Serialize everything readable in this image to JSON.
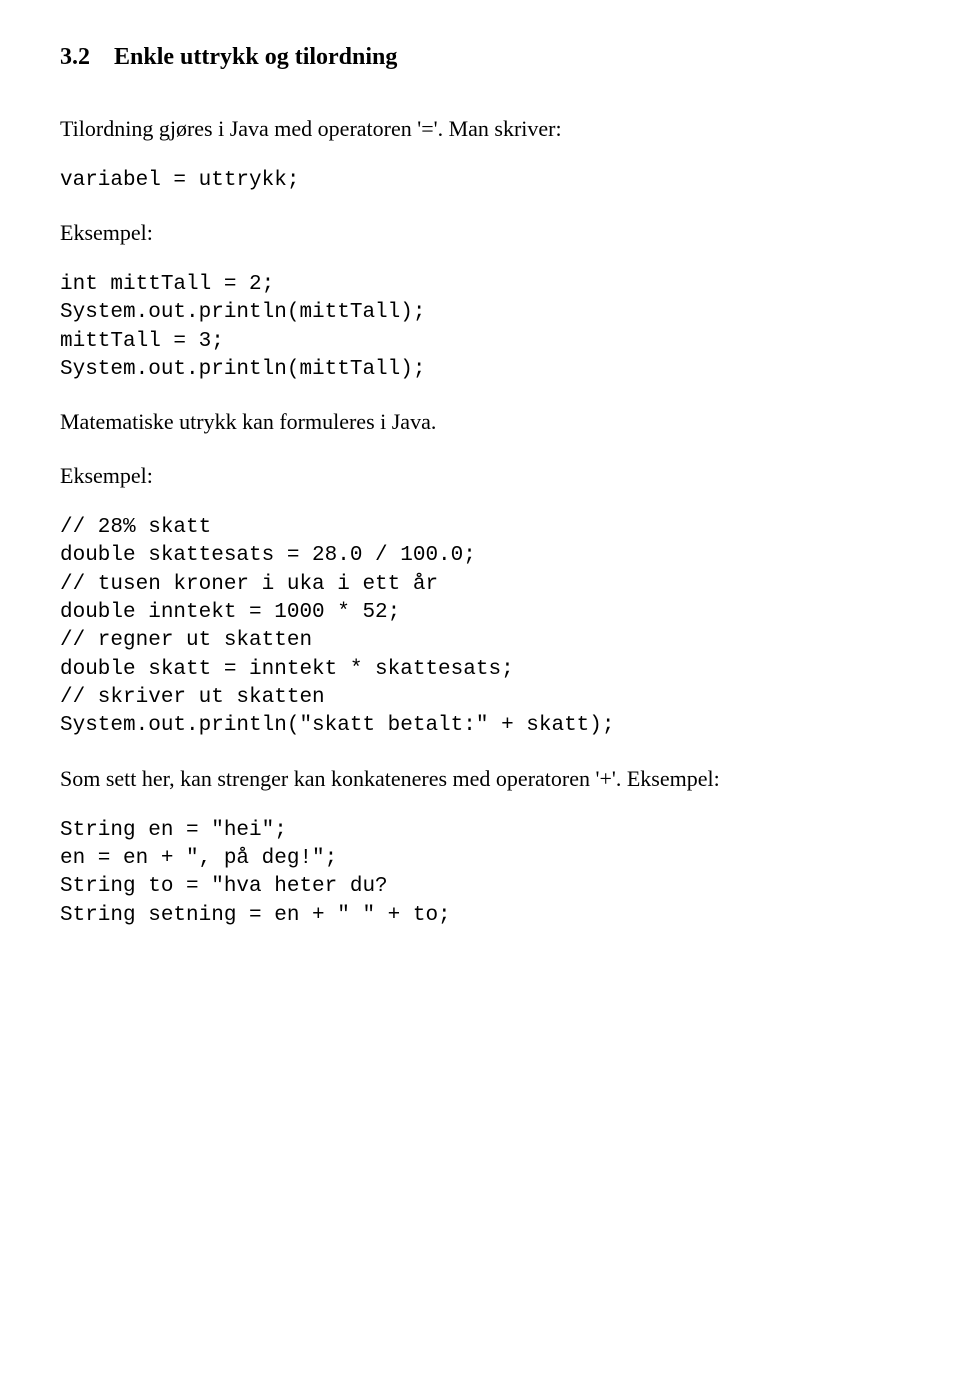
{
  "heading": {
    "number": "3.2",
    "title": "Enkle uttrykk og tilordning"
  },
  "para1": "Tilordning gjøres i Java med operatoren '='. Man skriver:",
  "code1": "variabel = uttrykk;",
  "exampleLabel1": "Eksempel:",
  "code2": "int mittTall = 2;\nSystem.out.println(mittTall);\nmittTall = 3;\nSystem.out.println(mittTall);",
  "para2": "Matematiske utrykk kan formuleres i Java.",
  "exampleLabel2": "Eksempel:",
  "code3": "// 28% skatt\ndouble skattesats = 28.0 / 100.0;\n// tusen kroner i uka i ett år\ndouble inntekt = 1000 * 52;\n// regner ut skatten\ndouble skatt = inntekt * skattesats;\n// skriver ut skatten\nSystem.out.println(\"skatt betalt:\" + skatt);",
  "para3": "Som sett her, kan strenger kan konkateneres med operatoren '+'. Eksempel:",
  "code4": "String en = \"hei\";\nen = en + \", på deg!\";\nString to = \"hva heter du?\nString setning = en + \" \" + to;"
}
